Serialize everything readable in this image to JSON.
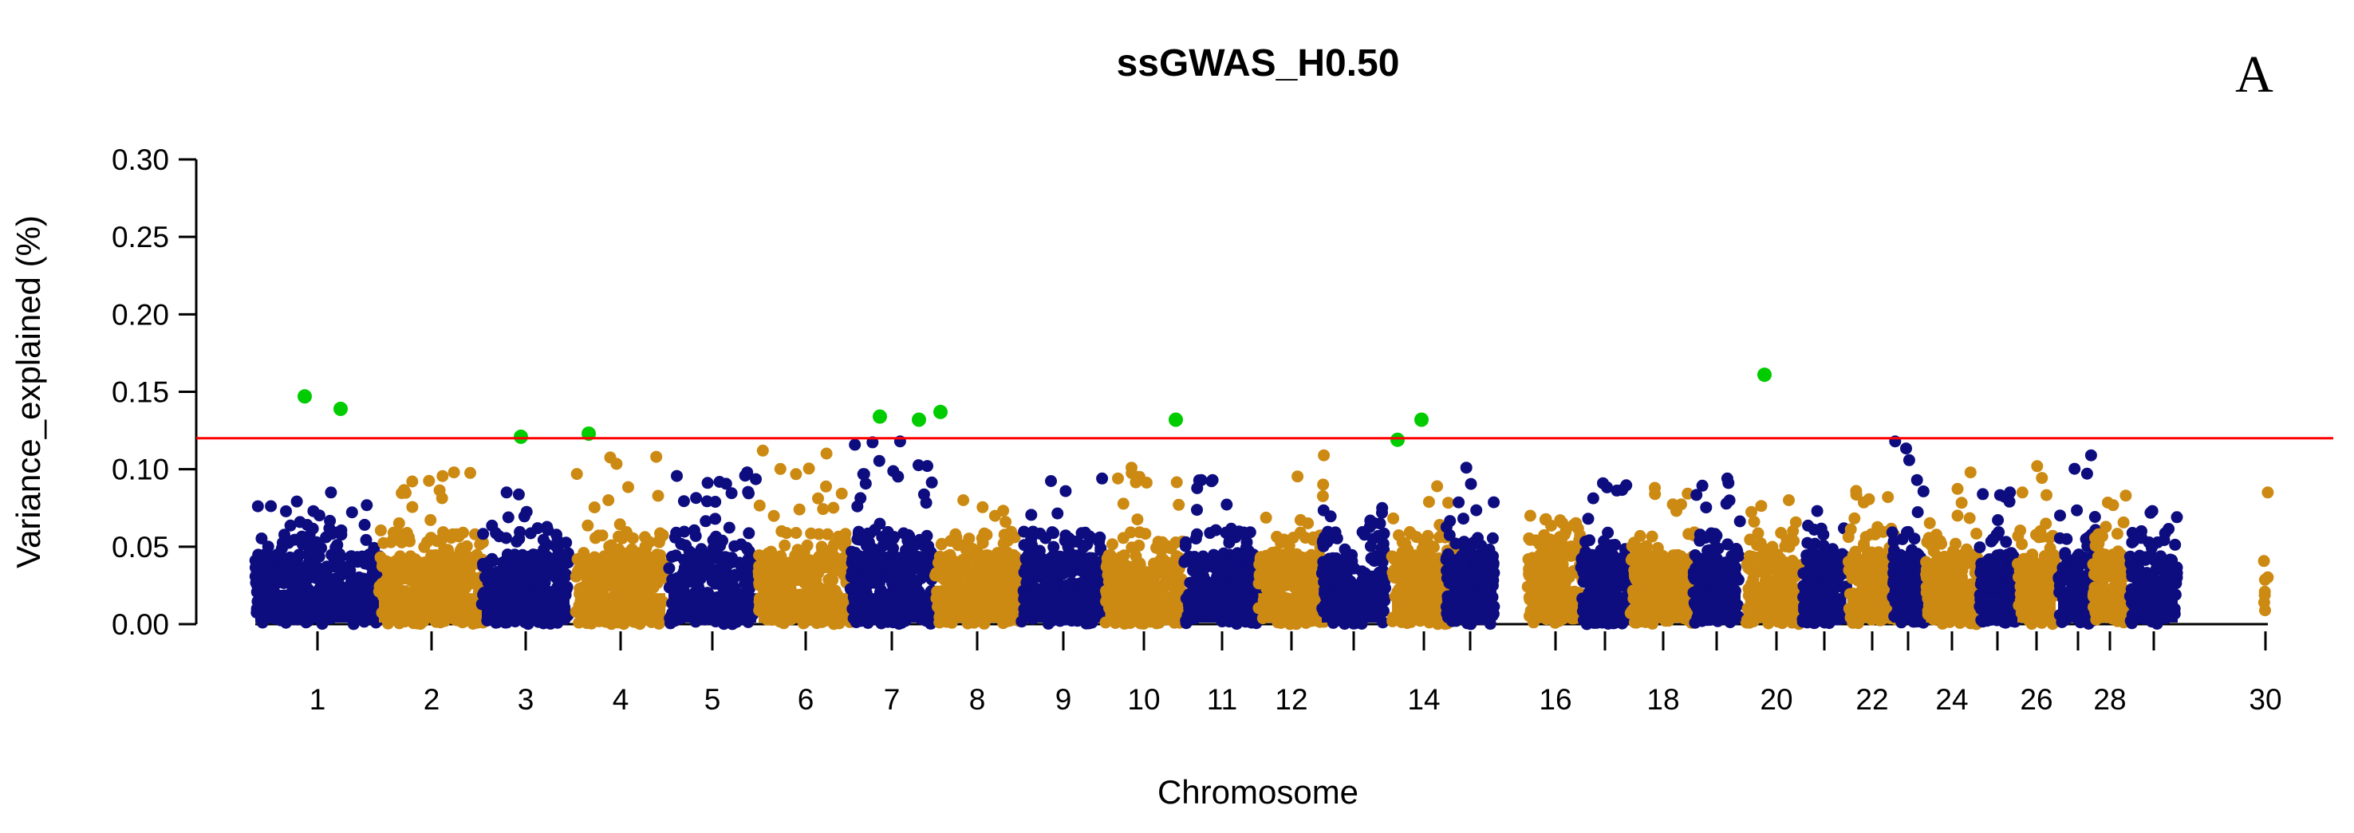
{
  "chart_data": {
    "type": "scatter",
    "subtype": "manhattan",
    "title": "ssGWAS_H0.50",
    "panel_label": "A",
    "xlabel": "Chromosome",
    "ylabel": "Variance_explained (%)",
    "ylim": [
      0,
      0.3
    ],
    "y_ticks": [
      "0.00",
      "0.05",
      "0.10",
      "0.15",
      "0.20",
      "0.25",
      "0.30"
    ],
    "threshold": 0.12,
    "x_tick_labels": [
      "1",
      "2",
      "3",
      "4",
      "5",
      "6",
      "7",
      "8",
      "9",
      "10",
      "11",
      "12",
      "14",
      "16",
      "18",
      "20",
      "22",
      "24",
      "26",
      "28",
      "30"
    ],
    "colors": {
      "odd": "#0d0d80",
      "even": "#cc8a12",
      "significant": "#00cc00",
      "threshold": "#ff0000"
    },
    "chromosomes": [
      {
        "chr": 1,
        "max": 0.085,
        "n": 360
      },
      {
        "chr": 2,
        "max": 0.098,
        "n": 340
      },
      {
        "chr": 3,
        "max": 0.085,
        "n": 300
      },
      {
        "chr": 4,
        "max": 0.108,
        "n": 320
      },
      {
        "chr": 5,
        "max": 0.098,
        "n": 260
      },
      {
        "chr": 6,
        "max": 0.112,
        "n": 300
      },
      {
        "chr": 7,
        "max": 0.118,
        "n": 300
      },
      {
        "chr": 8,
        "max": 0.08,
        "n": 290
      },
      {
        "chr": 9,
        "max": 0.094,
        "n": 260
      },
      {
        "chr": 10,
        "max": 0.101,
        "n": 260
      },
      {
        "chr": 11,
        "max": 0.093,
        "n": 260
      },
      {
        "chr": 12,
        "max": 0.109,
        "n": 220
      },
      {
        "chr": 13,
        "max": 0.075,
        "n": 220
      },
      {
        "chr": 14,
        "max": 0.089,
        "n": 220
      },
      {
        "chr": 15,
        "max": 0.101,
        "n": 200
      },
      {
        "chr": 16,
        "max": 0.07,
        "n": 200
      },
      {
        "chr": 17,
        "max": 0.091,
        "n": 180
      },
      {
        "chr": 18,
        "max": 0.088,
        "n": 180
      },
      {
        "chr": 19,
        "max": 0.094,
        "n": 160
      },
      {
        "chr": 20,
        "max": 0.08,
        "n": 180
      },
      {
        "chr": 21,
        "max": 0.073,
        "n": 150
      },
      {
        "chr": 22,
        "max": 0.086,
        "n": 160
      },
      {
        "chr": 23,
        "max": 0.118,
        "n": 150
      },
      {
        "chr": 24,
        "max": 0.098,
        "n": 150
      },
      {
        "chr": 25,
        "max": 0.085,
        "n": 130
      },
      {
        "chr": 26,
        "max": 0.102,
        "n": 130
      },
      {
        "chr": 27,
        "max": 0.109,
        "n": 120
      },
      {
        "chr": 28,
        "max": 0.083,
        "n": 120
      },
      {
        "chr": 29,
        "max": 0.073,
        "n": 120
      },
      {
        "chr": 30,
        "max": 0.085,
        "n": 8
      }
    ],
    "significant_snps": [
      {
        "chr": 1,
        "value": 0.147
      },
      {
        "chr": 1,
        "value": 0.139
      },
      {
        "chr": 3,
        "value": 0.121
      },
      {
        "chr": 4,
        "value": 0.123
      },
      {
        "chr": 7,
        "value": 0.134
      },
      {
        "chr": 7,
        "value": 0.132
      },
      {
        "chr": 8,
        "value": 0.137
      },
      {
        "chr": 10,
        "value": 0.132
      },
      {
        "chr": 14,
        "value": 0.119
      },
      {
        "chr": 14,
        "value": 0.132
      },
      {
        "chr": 20,
        "value": 0.161
      }
    ]
  }
}
